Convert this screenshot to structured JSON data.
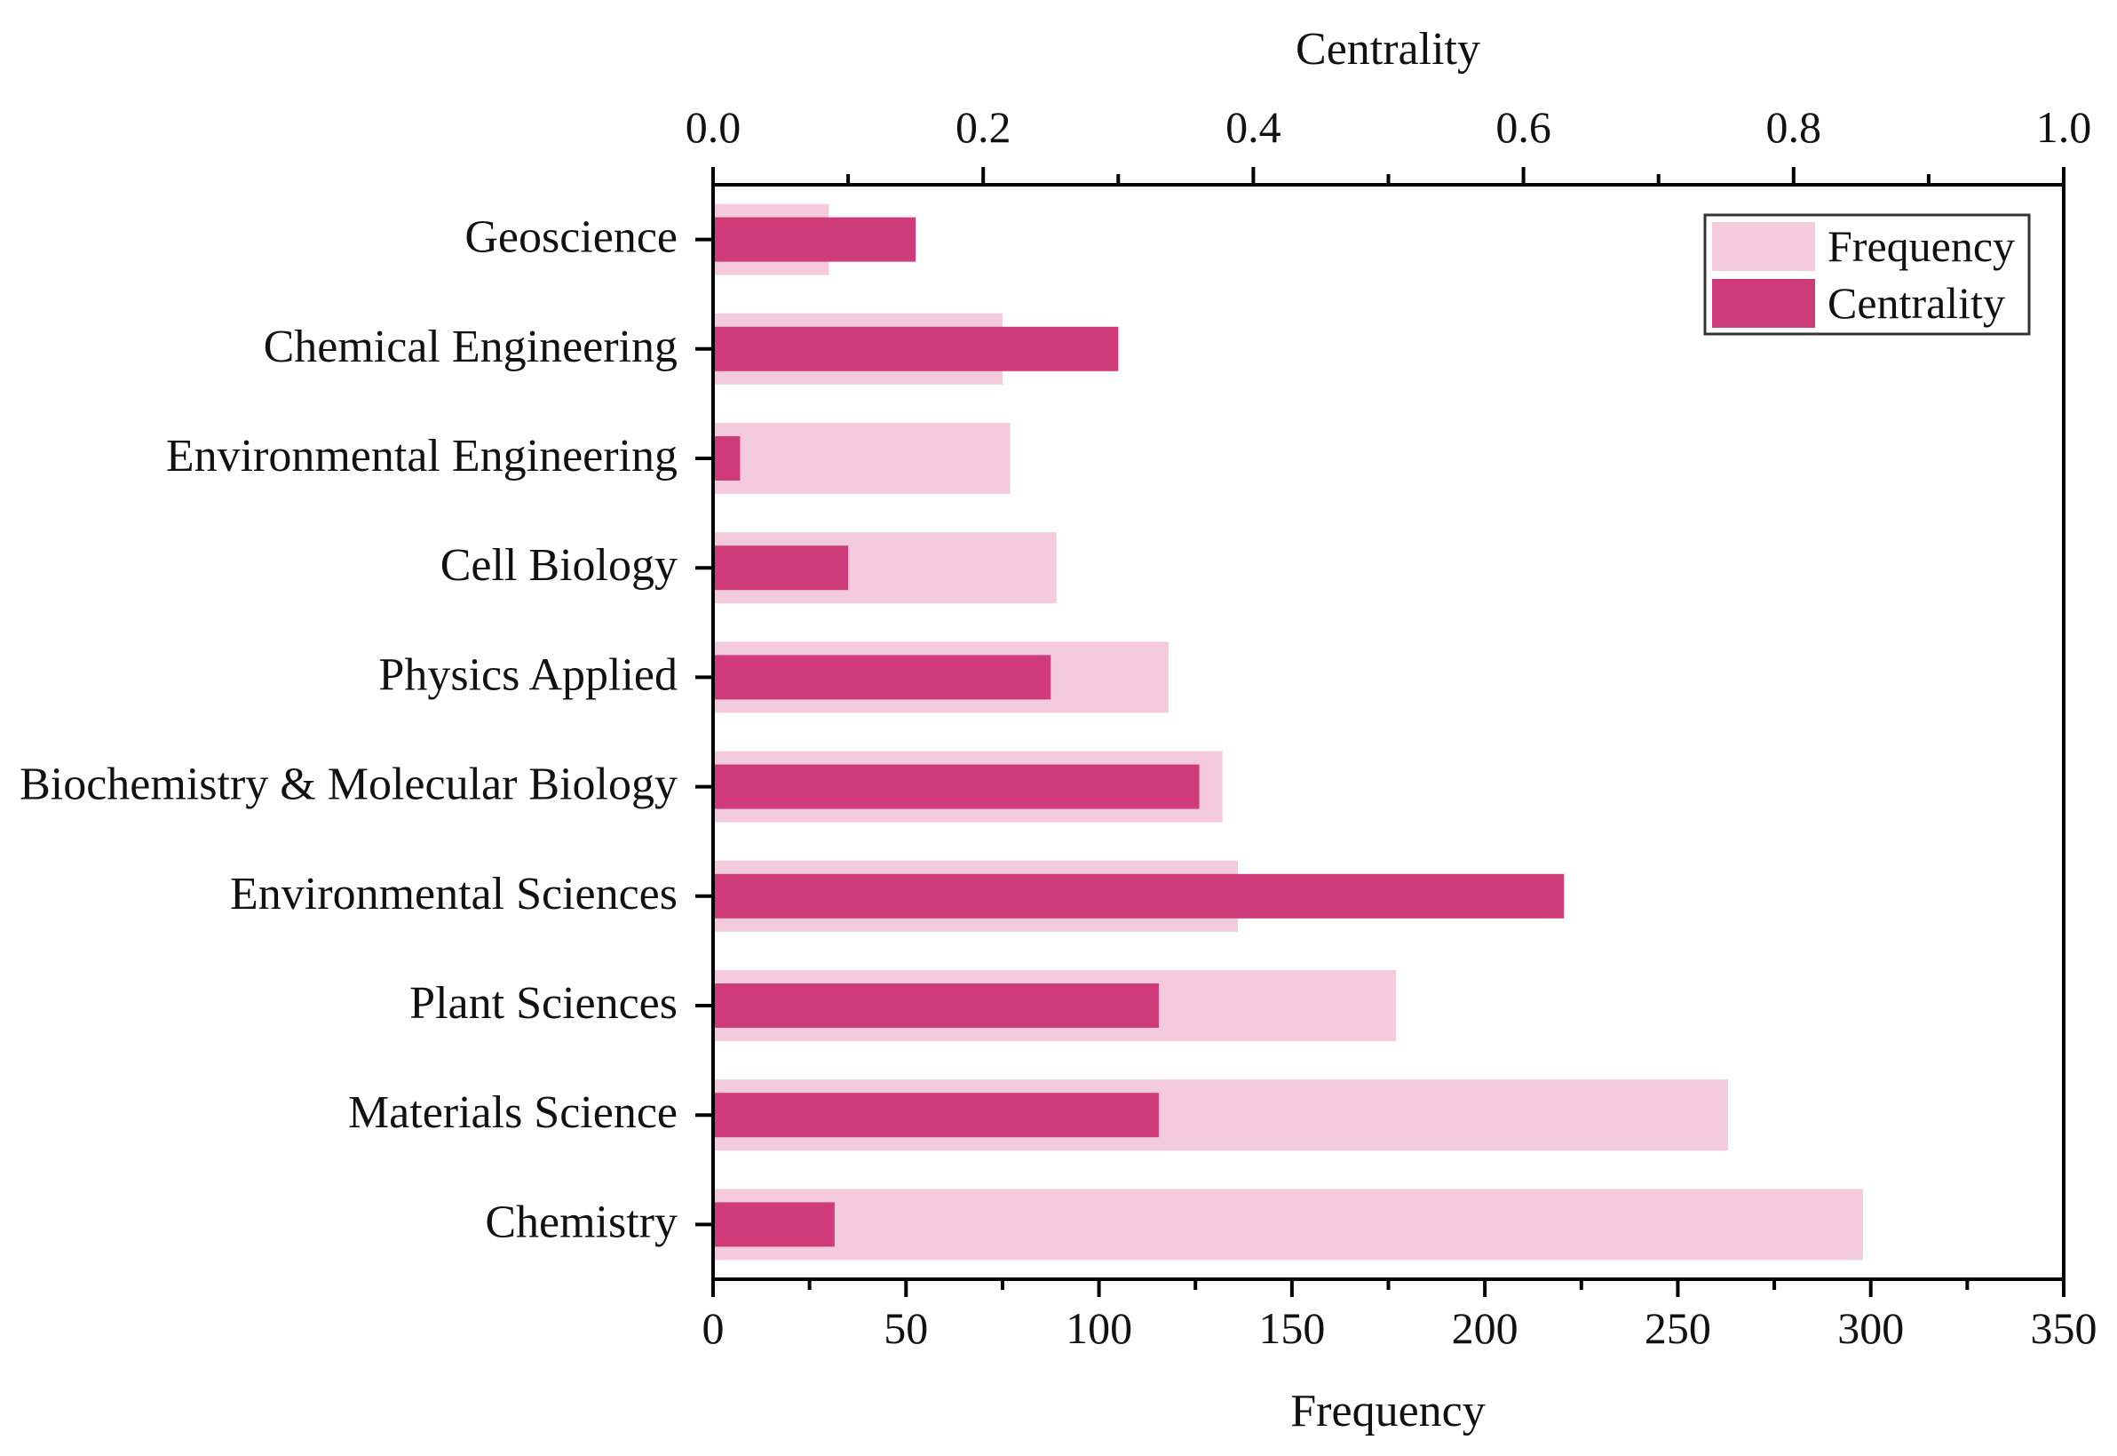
{
  "chart_data": {
    "type": "bar",
    "orientation": "horizontal",
    "categories": [
      "Geoscience",
      "Chemical Engineering",
      "Environmental Engineering",
      "Cell Biology",
      "Physics Applied",
      "Biochemistry & Molecular Biology",
      "Environmental Sciences",
      "Plant Sciences",
      "Materials Science",
      "Chemistry"
    ],
    "series": [
      {
        "name": "Frequency",
        "axis": "bottom",
        "color": "#f3cbdc",
        "values": [
          30,
          75,
          77,
          89,
          118,
          132,
          136,
          177,
          263,
          298
        ]
      },
      {
        "name": "Centrality",
        "axis": "top",
        "color": "#d03b7b",
        "values": [
          0.15,
          0.3,
          0.02,
          0.1,
          0.25,
          0.36,
          0.63,
          0.33,
          0.33,
          0.09
        ]
      }
    ],
    "bottom_axis": {
      "title": "Frequency",
      "range": [
        0,
        350
      ],
      "ticks": [
        "0",
        "50",
        "100",
        "150",
        "200",
        "250",
        "300",
        "350"
      ]
    },
    "top_axis": {
      "title": "Centrality",
      "range": [
        0.0,
        1.0
      ],
      "ticks": [
        "0.0",
        "0.2",
        "0.4",
        "0.6",
        "0.8",
        "1.0"
      ]
    },
    "legend": {
      "position": "top-right",
      "entries": [
        "Frequency",
        "Centrality"
      ]
    },
    "grid": false
  }
}
